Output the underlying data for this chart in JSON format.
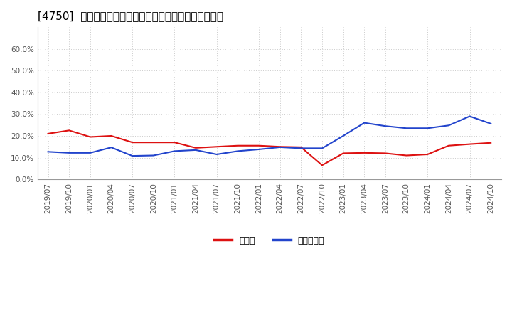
{
  "title": "[4750]  現須金、有利子負債の総資産に対する比率の推移",
  "x_labels": [
    "2019/07",
    "2019/10",
    "2020/01",
    "2020/04",
    "2020/07",
    "2020/10",
    "2021/01",
    "2021/04",
    "2021/07",
    "2021/10",
    "2022/01",
    "2022/04",
    "2022/07",
    "2022/10",
    "2023/01",
    "2023/04",
    "2023/07",
    "2023/10",
    "2024/01",
    "2024/04",
    "2024/07",
    "2024/10"
  ],
  "cash_values": [
    0.21,
    0.225,
    0.195,
    0.2,
    0.17,
    0.17,
    0.17,
    0.145,
    0.15,
    0.155,
    0.155,
    0.15,
    0.148,
    0.065,
    0.12,
    0.122,
    0.12,
    0.11,
    0.115,
    0.155,
    0.162,
    0.168
  ],
  "debt_values": [
    0.127,
    0.122,
    0.122,
    0.147,
    0.108,
    0.11,
    0.13,
    0.135,
    0.115,
    0.13,
    0.138,
    0.148,
    0.143,
    0.143,
    0.2,
    0.26,
    0.245,
    0.235,
    0.235,
    0.248,
    0.29,
    0.256
  ],
  "cash_color": "#dd1111",
  "debt_color": "#2244cc",
  "ylim": [
    0.0,
    0.7
  ],
  "yticks": [
    0.0,
    0.1,
    0.2,
    0.3,
    0.4,
    0.5,
    0.6
  ],
  "ytick_labels": [
    "0.0%",
    "10.0%",
    "20.0%",
    "30.0%",
    "40.0%",
    "50.0%",
    "60.0%"
  ],
  "legend_cash": "現須金",
  "legend_debt": "有利子負債",
  "bg_color": "#ffffff",
  "plot_bg_color": "#ffffff",
  "grid_color": "#bbbbbb",
  "title_fontsize": 11,
  "axis_fontsize": 7.5,
  "legend_fontsize": 9
}
